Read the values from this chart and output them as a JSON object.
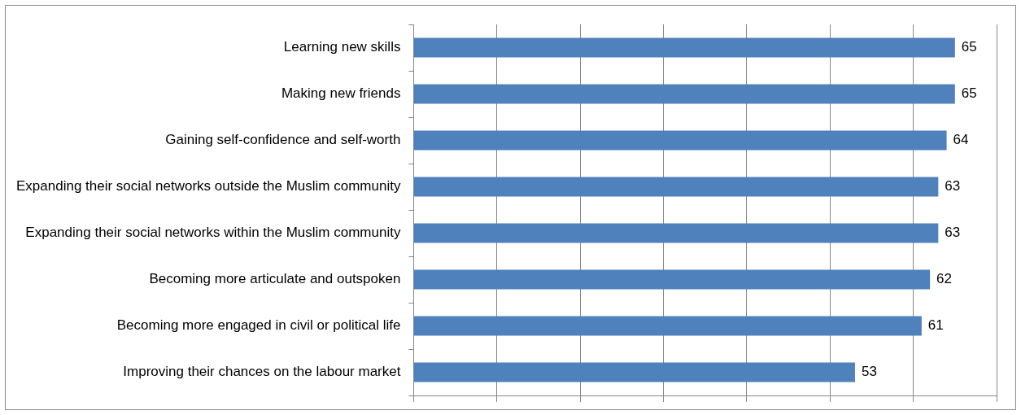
{
  "chart_data": {
    "type": "bar",
    "orientation": "horizontal",
    "categories": [
      "Learning new skills",
      "Making new friends",
      "Gaining self-confidence and self-worth",
      "Expanding their social networks outside the Muslim community",
      "Expanding their social networks within the Muslim community",
      "Becoming more articulate and outspoken",
      "Becoming more engaged in civil or political life",
      "Improving their chances on the labour market"
    ],
    "values": [
      65,
      65,
      64,
      63,
      63,
      62,
      61,
      53
    ],
    "color": "#4f81bd",
    "xlim": [
      0,
      70
    ],
    "xticks": [
      {
        "value": 0,
        "label": null
      },
      {
        "value": 10,
        "label": null
      },
      {
        "value": 20,
        "label": null
      },
      {
        "value": 30,
        "label": null
      },
      {
        "value": 40,
        "label": null
      },
      {
        "value": 50,
        "label": null
      },
      {
        "value": 60,
        "label": null
      },
      {
        "value": 70,
        "label": null
      }
    ],
    "tick_labels": "y",
    "grid": "x",
    "data_labels": true,
    "legend": false
  }
}
